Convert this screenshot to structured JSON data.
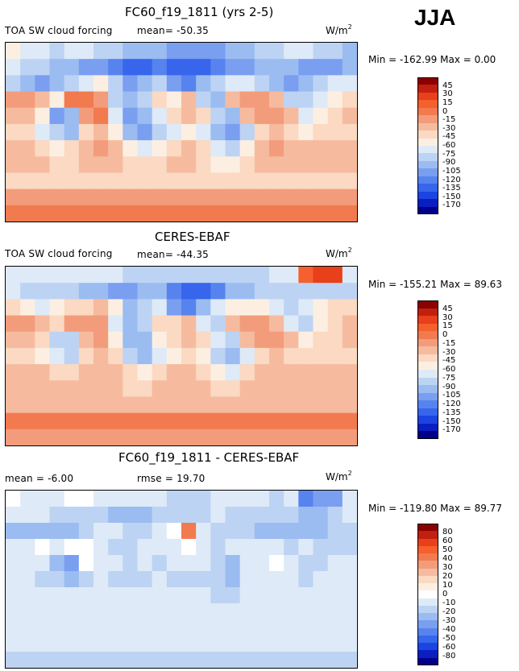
{
  "season": "JJA",
  "palettes": {
    "abs": [
      "#8b0000",
      "#c1200e",
      "#e8401a",
      "#f5602e",
      "#f27a4f",
      "#f39c7b",
      "#f6bb9e",
      "#fbd9c2",
      "#fcefe2",
      "#deeaf7",
      "#bdd3f3",
      "#9bbcf1",
      "#7a9ef0",
      "#5683ee",
      "#3765ec",
      "#1c44e2",
      "#0a1fbf",
      "#00008b"
    ],
    "diff": [
      "#8b0000",
      "#c1200e",
      "#e8401a",
      "#f5602e",
      "#f27a4f",
      "#f39c7b",
      "#f6bb9e",
      "#fbd9c2",
      "#fcefe2",
      "#ffffff",
      "#deeaf7",
      "#bdd3f3",
      "#9bbcf1",
      "#7a9ef0",
      "#5683ee",
      "#3765ec",
      "#1c44e2",
      "#0a1fbf",
      "#00008b"
    ]
  },
  "chart_data": [
    {
      "type": "heatmap",
      "title": "FC60_f19_1811 (yrs 2-5)",
      "left_label": "TOA SW cloud forcing",
      "center_label": "mean=  -50.35",
      "units": "W/m",
      "units_exp": "2",
      "minmax": "Min = -162.99  Max =    0.00",
      "colorbar_levels": [
        "45",
        "30",
        "15",
        "0",
        "-15",
        "-30",
        "-45",
        "-60",
        "-75",
        "-90",
        "-105",
        "-120",
        "-135",
        "-150",
        "-170"
      ],
      "palette": "abs",
      "field": [
        [
          8,
          9,
          9,
          10,
          9,
          9,
          10,
          10,
          11,
          11,
          11,
          12,
          12,
          12,
          12,
          11,
          11,
          10,
          10,
          9,
          9,
          10,
          10,
          11
        ],
        [
          9,
          10,
          10,
          11,
          11,
          12,
          12,
          13,
          14,
          14,
          13,
          14,
          14,
          14,
          13,
          12,
          12,
          11,
          11,
          11,
          12,
          12,
          12,
          11
        ],
        [
          10,
          11,
          12,
          11,
          10,
          9,
          8,
          10,
          12,
          11,
          10,
          12,
          13,
          11,
          10,
          9,
          9,
          10,
          11,
          12,
          11,
          10,
          9,
          9
        ],
        [
          5,
          5,
          6,
          8,
          4,
          4,
          5,
          10,
          11,
          10,
          7,
          8,
          6,
          10,
          11,
          6,
          5,
          5,
          6,
          10,
          10,
          9,
          8,
          7
        ],
        [
          6,
          6,
          8,
          12,
          11,
          5,
          4,
          9,
          12,
          11,
          9,
          7,
          6,
          7,
          10,
          11,
          6,
          5,
          5,
          6,
          9,
          8,
          7,
          6
        ],
        [
          7,
          7,
          9,
          10,
          11,
          7,
          6,
          8,
          11,
          12,
          10,
          9,
          8,
          9,
          11,
          12,
          10,
          7,
          6,
          7,
          8,
          7,
          7,
          7
        ],
        [
          6,
          6,
          7,
          8,
          7,
          6,
          5,
          6,
          8,
          9,
          8,
          7,
          6,
          7,
          9,
          10,
          8,
          6,
          5,
          6,
          6,
          6,
          6,
          6
        ],
        [
          6,
          6,
          6,
          7,
          7,
          6,
          6,
          6,
          7,
          7,
          7,
          6,
          6,
          7,
          8,
          8,
          7,
          6,
          6,
          6,
          6,
          6,
          6,
          6
        ],
        [
          7,
          7,
          7,
          7,
          7,
          7,
          7,
          7,
          7,
          7,
          7,
          7,
          7,
          7,
          7,
          7,
          7,
          7,
          7,
          7,
          7,
          7,
          7,
          7
        ],
        [
          5,
          5,
          5,
          5,
          5,
          5,
          5,
          5,
          5,
          5,
          5,
          5,
          5,
          5,
          5,
          5,
          5,
          5,
          5,
          5,
          5,
          5,
          5,
          5
        ],
        [
          4,
          4,
          4,
          4,
          4,
          4,
          4,
          4,
          4,
          4,
          4,
          4,
          4,
          4,
          4,
          4,
          4,
          4,
          4,
          4,
          4,
          4,
          4,
          4
        ]
      ]
    },
    {
      "type": "heatmap",
      "title": "CERES-EBAF",
      "left_label": "TOA SW cloud forcing",
      "center_label": "mean=  -44.35",
      "units": "W/m",
      "units_exp": "2",
      "minmax": "Min = -155.21  Max =   89.63",
      "colorbar_levels": [
        "45",
        "30",
        "15",
        "0",
        "-15",
        "-30",
        "-45",
        "-60",
        "-75",
        "-90",
        "-105",
        "-120",
        "-135",
        "-150",
        "-170"
      ],
      "palette": "abs",
      "field": [
        [
          9,
          9,
          9,
          9,
          9,
          9,
          9,
          9,
          10,
          10,
          10,
          10,
          10,
          10,
          10,
          10,
          10,
          10,
          9,
          9,
          3,
          2,
          2,
          9
        ],
        [
          9,
          10,
          10,
          10,
          10,
          11,
          11,
          12,
          12,
          11,
          11,
          13,
          14,
          14,
          13,
          11,
          11,
          10,
          10,
          10,
          10,
          10,
          10,
          10
        ],
        [
          7,
          8,
          9,
          8,
          7,
          7,
          6,
          8,
          11,
          10,
          9,
          12,
          13,
          11,
          9,
          8,
          8,
          8,
          9,
          10,
          9,
          8,
          7,
          7
        ],
        [
          5,
          5,
          6,
          7,
          5,
          5,
          5,
          9,
          11,
          10,
          7,
          7,
          6,
          9,
          10,
          6,
          5,
          5,
          6,
          9,
          10,
          8,
          7,
          6
        ],
        [
          6,
          6,
          7,
          10,
          10,
          6,
          5,
          8,
          11,
          11,
          8,
          7,
          6,
          7,
          9,
          10,
          6,
          5,
          5,
          6,
          8,
          7,
          7,
          6
        ],
        [
          7,
          7,
          8,
          9,
          10,
          7,
          6,
          7,
          10,
          11,
          9,
          8,
          7,
          8,
          10,
          11,
          9,
          7,
          6,
          7,
          7,
          7,
          7,
          7
        ],
        [
          6,
          6,
          6,
          7,
          7,
          6,
          6,
          6,
          7,
          8,
          7,
          6,
          6,
          7,
          8,
          9,
          7,
          6,
          6,
          6,
          6,
          6,
          6,
          6
        ],
        [
          6,
          6,
          6,
          6,
          6,
          6,
          6,
          6,
          7,
          7,
          6,
          6,
          6,
          6,
          7,
          7,
          6,
          6,
          6,
          6,
          6,
          6,
          6,
          6
        ],
        [
          6,
          6,
          6,
          6,
          6,
          6,
          6,
          6,
          6,
          6,
          6,
          6,
          6,
          6,
          6,
          6,
          6,
          6,
          6,
          6,
          6,
          6,
          6,
          6
        ],
        [
          4,
          4,
          4,
          4,
          4,
          4,
          4,
          4,
          4,
          4,
          4,
          4,
          4,
          4,
          4,
          4,
          4,
          4,
          4,
          4,
          4,
          4,
          4,
          4
        ],
        [
          5,
          5,
          5,
          5,
          5,
          5,
          5,
          5,
          5,
          5,
          5,
          5,
          5,
          5,
          5,
          5,
          5,
          5,
          5,
          5,
          5,
          5,
          5,
          5
        ]
      ]
    },
    {
      "type": "heatmap",
      "title": "FC60_f19_1811 - CERES-EBAF",
      "left_label": "mean =   -6.00",
      "center_label": "rmse =  19.70",
      "units": "W/m",
      "units_exp": "2",
      "minmax": "Min = -119.80  Max =   89.77",
      "colorbar_levels": [
        "80",
        "60",
        "50",
        "40",
        "30",
        "20",
        "10",
        "0",
        "-10",
        "-20",
        "-30",
        "-40",
        "-50",
        "-60",
        "-80"
      ],
      "palette": "diff",
      "field": [
        [
          9,
          10,
          10,
          10,
          9,
          9,
          10,
          10,
          10,
          10,
          10,
          11,
          11,
          11,
          10,
          10,
          10,
          10,
          11,
          10,
          14,
          13,
          13,
          10
        ],
        [
          10,
          10,
          10,
          11,
          11,
          11,
          11,
          12,
          12,
          12,
          11,
          11,
          11,
          11,
          10,
          11,
          11,
          11,
          11,
          11,
          12,
          12,
          11,
          10
        ],
        [
          12,
          12,
          12,
          12,
          12,
          11,
          10,
          10,
          11,
          11,
          10,
          9,
          4,
          10,
          11,
          11,
          11,
          12,
          12,
          12,
          12,
          12,
          11,
          11
        ],
        [
          10,
          10,
          9,
          10,
          9,
          9,
          10,
          11,
          11,
          10,
          10,
          10,
          9,
          10,
          11,
          10,
          10,
          10,
          10,
          11,
          10,
          11,
          11,
          11
        ],
        [
          10,
          10,
          10,
          12,
          13,
          9,
          10,
          10,
          11,
          10,
          11,
          10,
          10,
          10,
          11,
          12,
          10,
          10,
          9,
          10,
          11,
          11,
          10,
          10
        ],
        [
          10,
          10,
          11,
          11,
          12,
          11,
          10,
          11,
          11,
          11,
          10,
          11,
          11,
          11,
          11,
          12,
          10,
          10,
          10,
          10,
          11,
          10,
          10,
          10
        ],
        [
          10,
          10,
          10,
          10,
          10,
          10,
          10,
          10,
          10,
          10,
          10,
          10,
          10,
          10,
          11,
          11,
          10,
          10,
          10,
          10,
          10,
          10,
          10,
          10
        ],
        [
          10,
          10,
          10,
          10,
          10,
          10,
          10,
          10,
          10,
          10,
          10,
          10,
          10,
          10,
          10,
          10,
          10,
          10,
          10,
          10,
          10,
          10,
          10,
          10
        ],
        [
          10,
          10,
          10,
          10,
          10,
          10,
          10,
          10,
          10,
          10,
          10,
          10,
          10,
          10,
          10,
          10,
          10,
          10,
          10,
          10,
          10,
          10,
          10,
          10
        ],
        [
          10,
          10,
          10,
          10,
          10,
          10,
          10,
          10,
          10,
          10,
          10,
          10,
          10,
          10,
          10,
          10,
          10,
          10,
          10,
          10,
          10,
          10,
          10,
          10
        ],
        [
          11,
          11,
          11,
          11,
          11,
          11,
          11,
          11,
          11,
          11,
          11,
          11,
          11,
          11,
          11,
          11,
          11,
          11,
          11,
          11,
          11,
          11,
          11,
          11
        ]
      ]
    }
  ]
}
